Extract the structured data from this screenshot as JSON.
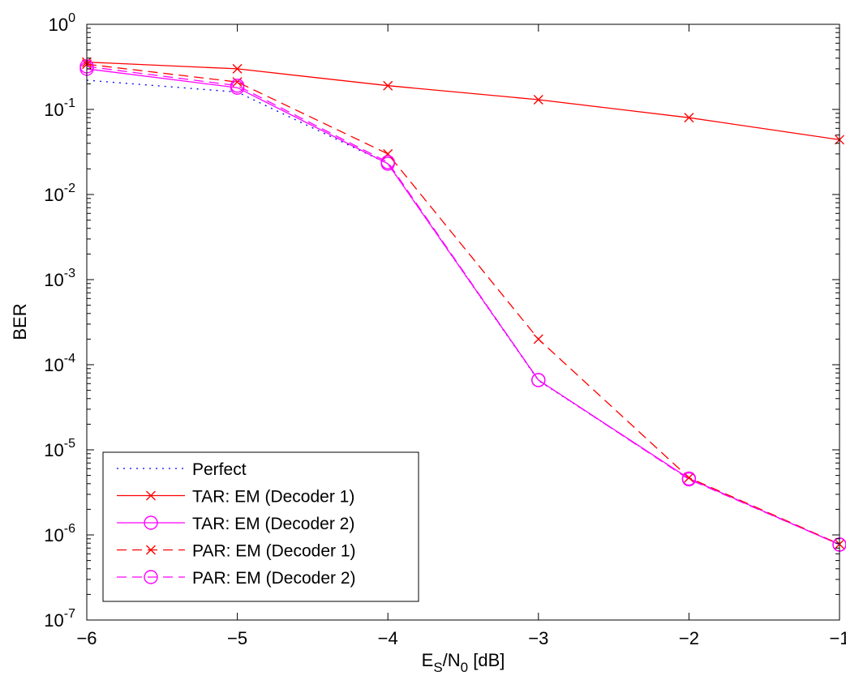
{
  "chart_data": {
    "type": "line",
    "title": "",
    "xlabel": {
      "base": "E",
      "sub1": "S",
      "mid": "/N",
      "sub2": "0",
      "rest": " [dB]"
    },
    "ylabel": "BER",
    "xlim": [
      -6,
      -1
    ],
    "ylim": [
      1e-07,
      1
    ],
    "yscale": "log",
    "grid": false,
    "legend_position": "bottom-left",
    "x_ticks": [
      -6,
      -5,
      -4,
      -3,
      -2,
      -1
    ],
    "x_tick_labels": [
      "−6",
      "−5",
      "−4",
      "−3",
      "−2",
      "−1"
    ],
    "y_ticks": [
      {
        "value": 1,
        "base": "10",
        "exp": "0"
      },
      {
        "value": 0.1,
        "base": "10",
        "exp": "-1"
      },
      {
        "value": 0.01,
        "base": "10",
        "exp": "-2"
      },
      {
        "value": 0.001,
        "base": "10",
        "exp": "-3"
      },
      {
        "value": 0.0001,
        "base": "10",
        "exp": "-4"
      },
      {
        "value": 1e-05,
        "base": "10",
        "exp": "-5"
      },
      {
        "value": 1e-06,
        "base": "10",
        "exp": "-6"
      },
      {
        "value": 1e-07,
        "base": "10",
        "exp": "-7"
      }
    ],
    "x": [
      -6,
      -5,
      -4,
      -3,
      -2,
      -1
    ],
    "series": [
      {
        "name": "Perfect",
        "color": "#0000ff",
        "dash": "dotted",
        "marker": "none",
        "values": [
          0.22,
          0.16,
          0.023,
          6.5e-05,
          4.6e-06,
          7.7e-07
        ]
      },
      {
        "name": "TAR: EM (Decoder 1)",
        "color": "#ff0000",
        "dash": "solid",
        "marker": "x",
        "values": [
          0.36,
          0.3,
          0.19,
          0.13,
          0.08,
          0.044
        ]
      },
      {
        "name": "TAR: EM (Decoder 2)",
        "color": "#ff00ff",
        "dash": "solid",
        "marker": "o",
        "values": [
          0.3,
          0.18,
          0.023,
          6.6e-05,
          4.6e-06,
          7.7e-07
        ]
      },
      {
        "name": "PAR: EM (Decoder 1)",
        "color": "#ff0000",
        "dash": "dashed",
        "marker": "x",
        "values": [
          0.34,
          0.21,
          0.03,
          0.0002,
          4.7e-06,
          7.8e-07
        ]
      },
      {
        "name": "PAR: EM (Decoder 2)",
        "color": "#ff00ff",
        "dash": "dashed",
        "marker": "o",
        "values": [
          0.32,
          0.19,
          0.024,
          6.6e-05,
          4.5e-06,
          7.7e-07
        ]
      }
    ]
  }
}
